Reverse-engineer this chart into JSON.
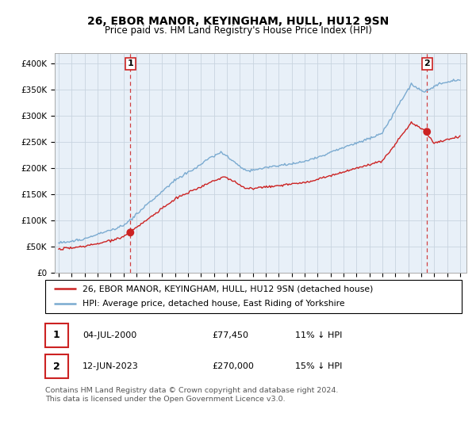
{
  "title": "26, EBOR MANOR, KEYINGHAM, HULL, HU12 9SN",
  "subtitle": "Price paid vs. HM Land Registry's House Price Index (HPI)",
  "ylim": [
    0,
    420000
  ],
  "yticks": [
    0,
    50000,
    100000,
    150000,
    200000,
    250000,
    300000,
    350000,
    400000
  ],
  "ytick_labels": [
    "£0",
    "£50K",
    "£100K",
    "£150K",
    "£200K",
    "£250K",
    "£300K",
    "£350K",
    "£400K"
  ],
  "sale1_date": 2000.54,
  "sale1_price": 77450,
  "sale2_date": 2023.45,
  "sale2_price": 270000,
  "hpi_color": "#7aaad0",
  "price_color": "#cc2222",
  "vline_color": "#cc2222",
  "background_color": "#ffffff",
  "plot_bg_color": "#e8f0f8",
  "grid_color": "#c8d4e0",
  "legend_label_price": "26, EBOR MANOR, KEYINGHAM, HULL, HU12 9SN (detached house)",
  "legend_label_hpi": "HPI: Average price, detached house, East Riding of Yorkshire",
  "footer": "Contains HM Land Registry data © Crown copyright and database right 2024.\nThis data is licensed under the Open Government Licence v3.0."
}
